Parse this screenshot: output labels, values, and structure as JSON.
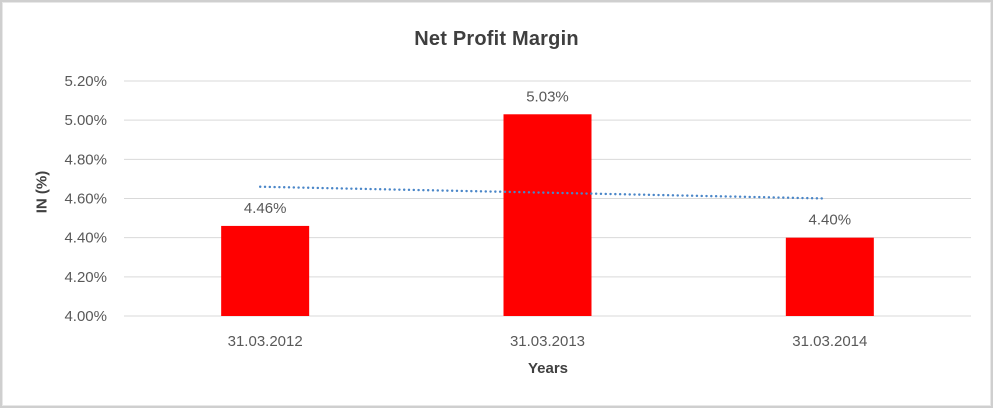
{
  "window": {
    "background": "#ffffff",
    "border_color": "#cfcfcf"
  },
  "chart_data": {
    "type": "bar",
    "title": "Net Profit Margin",
    "xlabel": "Years",
    "ylabel": "IN (%)",
    "categories": [
      "31.03.2012",
      "31.03.2013",
      "31.03.2014"
    ],
    "values": [
      4.46,
      5.03,
      4.4
    ],
    "data_labels": [
      "4.46%",
      "5.03%",
      "4.40%"
    ],
    "ylim": [
      4.0,
      5.2
    ],
    "yticks": [
      {
        "label": "4.00%",
        "value": 4.0
      },
      {
        "label": "4.20%",
        "value": 4.2
      },
      {
        "label": "4.40%",
        "value": 4.4
      },
      {
        "label": "4.60%",
        "value": 4.6
      },
      {
        "label": "4.80%",
        "value": 4.8
      },
      {
        "label": "5.00%",
        "value": 5.0
      },
      {
        "label": "5.20%",
        "value": 5.2
      }
    ],
    "grid": true,
    "legend": "none",
    "colors": {
      "bar": "#ff0000",
      "gridline": "#d9d9d9",
      "tick_text": "#595959",
      "title_text": "#3f3f3f",
      "trendline": "#4a86c8"
    },
    "trendline": {
      "type": "linear",
      "style": "dotted",
      "color": "#4a86c8",
      "start_value": 4.66,
      "end_value": 4.6
    }
  }
}
